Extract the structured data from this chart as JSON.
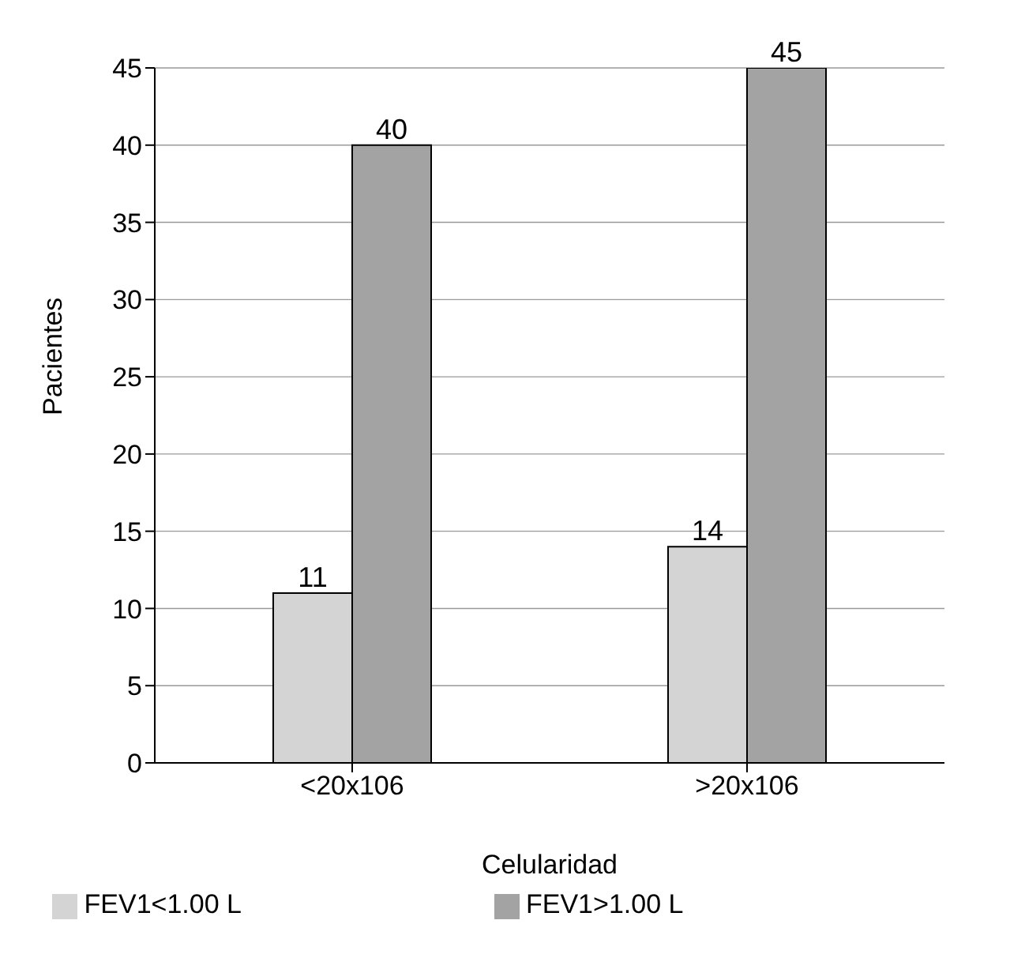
{
  "chart_data": {
    "type": "bar",
    "xlabel": "Celularidad",
    "ylabel": "Pacientes",
    "categories": [
      "<20x106",
      ">20x106"
    ],
    "series": [
      {
        "name": "FEV1<1.00 L",
        "color": "#d4d4d4",
        "values": [
          11,
          14
        ]
      },
      {
        "name": "FEV1>1.00 L",
        "color": "#a3a3a3",
        "values": [
          40,
          45
        ]
      }
    ],
    "ylim": [
      0,
      45
    ],
    "yticks": [
      0,
      5,
      10,
      15,
      20,
      25,
      30,
      35,
      40,
      45
    ],
    "grid": "y",
    "legend": "bottom",
    "data_labels": true
  }
}
